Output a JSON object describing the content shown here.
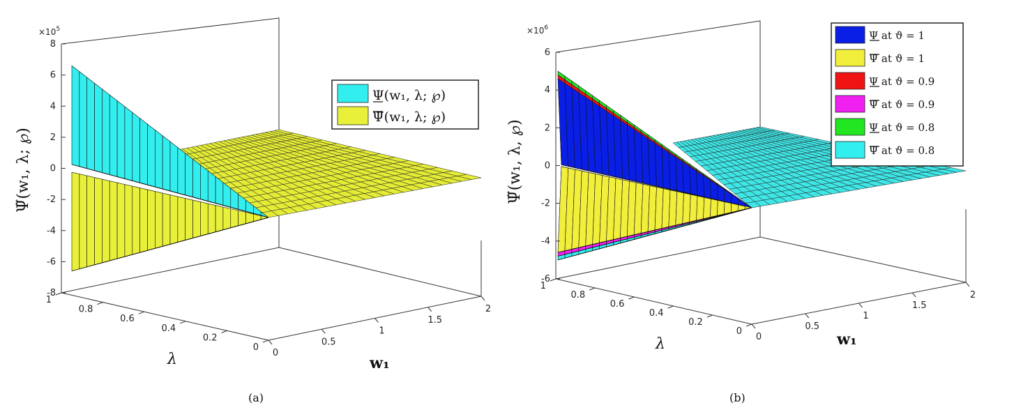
{
  "chart_data": [
    {
      "type": "surface",
      "caption": "(a)",
      "exponent": "×10",
      "exponent_power": "5",
      "scale": 100000,
      "zlabel": "Ψ̃(w₁, λ; ℘)",
      "xlabel": "w₁",
      "ylabel": "λ",
      "xlim": [
        0,
        2
      ],
      "ylim": [
        0,
        1
      ],
      "zlim": [
        -8,
        8
      ],
      "xticks": [
        "0",
        "0.5",
        "1",
        "1.5",
        "2"
      ],
      "yticks": [
        "0",
        "0.2",
        "0.4",
        "0.6",
        "0.8",
        "1"
      ],
      "zticks": [
        "-8",
        "-6",
        "-4",
        "-2",
        "0",
        "2",
        "4",
        "6",
        "8"
      ],
      "legend_position": "top-right",
      "series": [
        {
          "name": "Ψ(w₁, λ; ℘)",
          "bar": "under",
          "color": "#33eeee",
          "values_at_w1_0": [
            0,
            6.6
          ]
        },
        {
          "name": "Ψ̄(w₁, λ; ℘)",
          "bar": "over",
          "color": "#e8f03a",
          "values_at_w1_0": [
            0,
            -6.6
          ]
        }
      ]
    },
    {
      "type": "surface",
      "caption": "(b)",
      "exponent": "×10",
      "exponent_power": "6",
      "scale": 1000000,
      "zlabel": "Ψ̃(w₁, λ, ℘)",
      "xlabel": "w₁",
      "ylabel": "λ",
      "xlim": [
        0,
        2
      ],
      "ylim": [
        0,
        1
      ],
      "zlim": [
        -6,
        6
      ],
      "xticks": [
        "0",
        "0.5",
        "1",
        "1.5",
        "2"
      ],
      "yticks": [
        "0",
        "0.2",
        "0.4",
        "0.6",
        "0.8",
        "1"
      ],
      "zticks": [
        "-6",
        "-4",
        "-2",
        "0",
        "2",
        "4",
        "6"
      ],
      "legend_position": "top-right",
      "series": [
        {
          "name": "Ψ at ϑ = 1",
          "bar": "under",
          "color": "#0a1fe6",
          "peak": 4.6
        },
        {
          "name": "Ψ̄ at ϑ = 1",
          "bar": "over",
          "color": "#f2ee3c",
          "peak": -4.6
        },
        {
          "name": "Ψ at ϑ = 0.9",
          "bar": "under",
          "color": "#f01414",
          "peak": 4.8
        },
        {
          "name": "Ψ̄ at ϑ = 0.9",
          "bar": "over",
          "color": "#f020f0",
          "peak": -4.8
        },
        {
          "name": "Ψ at ϑ = 0.8",
          "bar": "under",
          "color": "#22e622",
          "peak": 5.0
        },
        {
          "name": "Ψ̄ at ϑ = 0.8",
          "bar": "over",
          "color": "#33eeee",
          "peak": -5.0
        }
      ]
    }
  ]
}
